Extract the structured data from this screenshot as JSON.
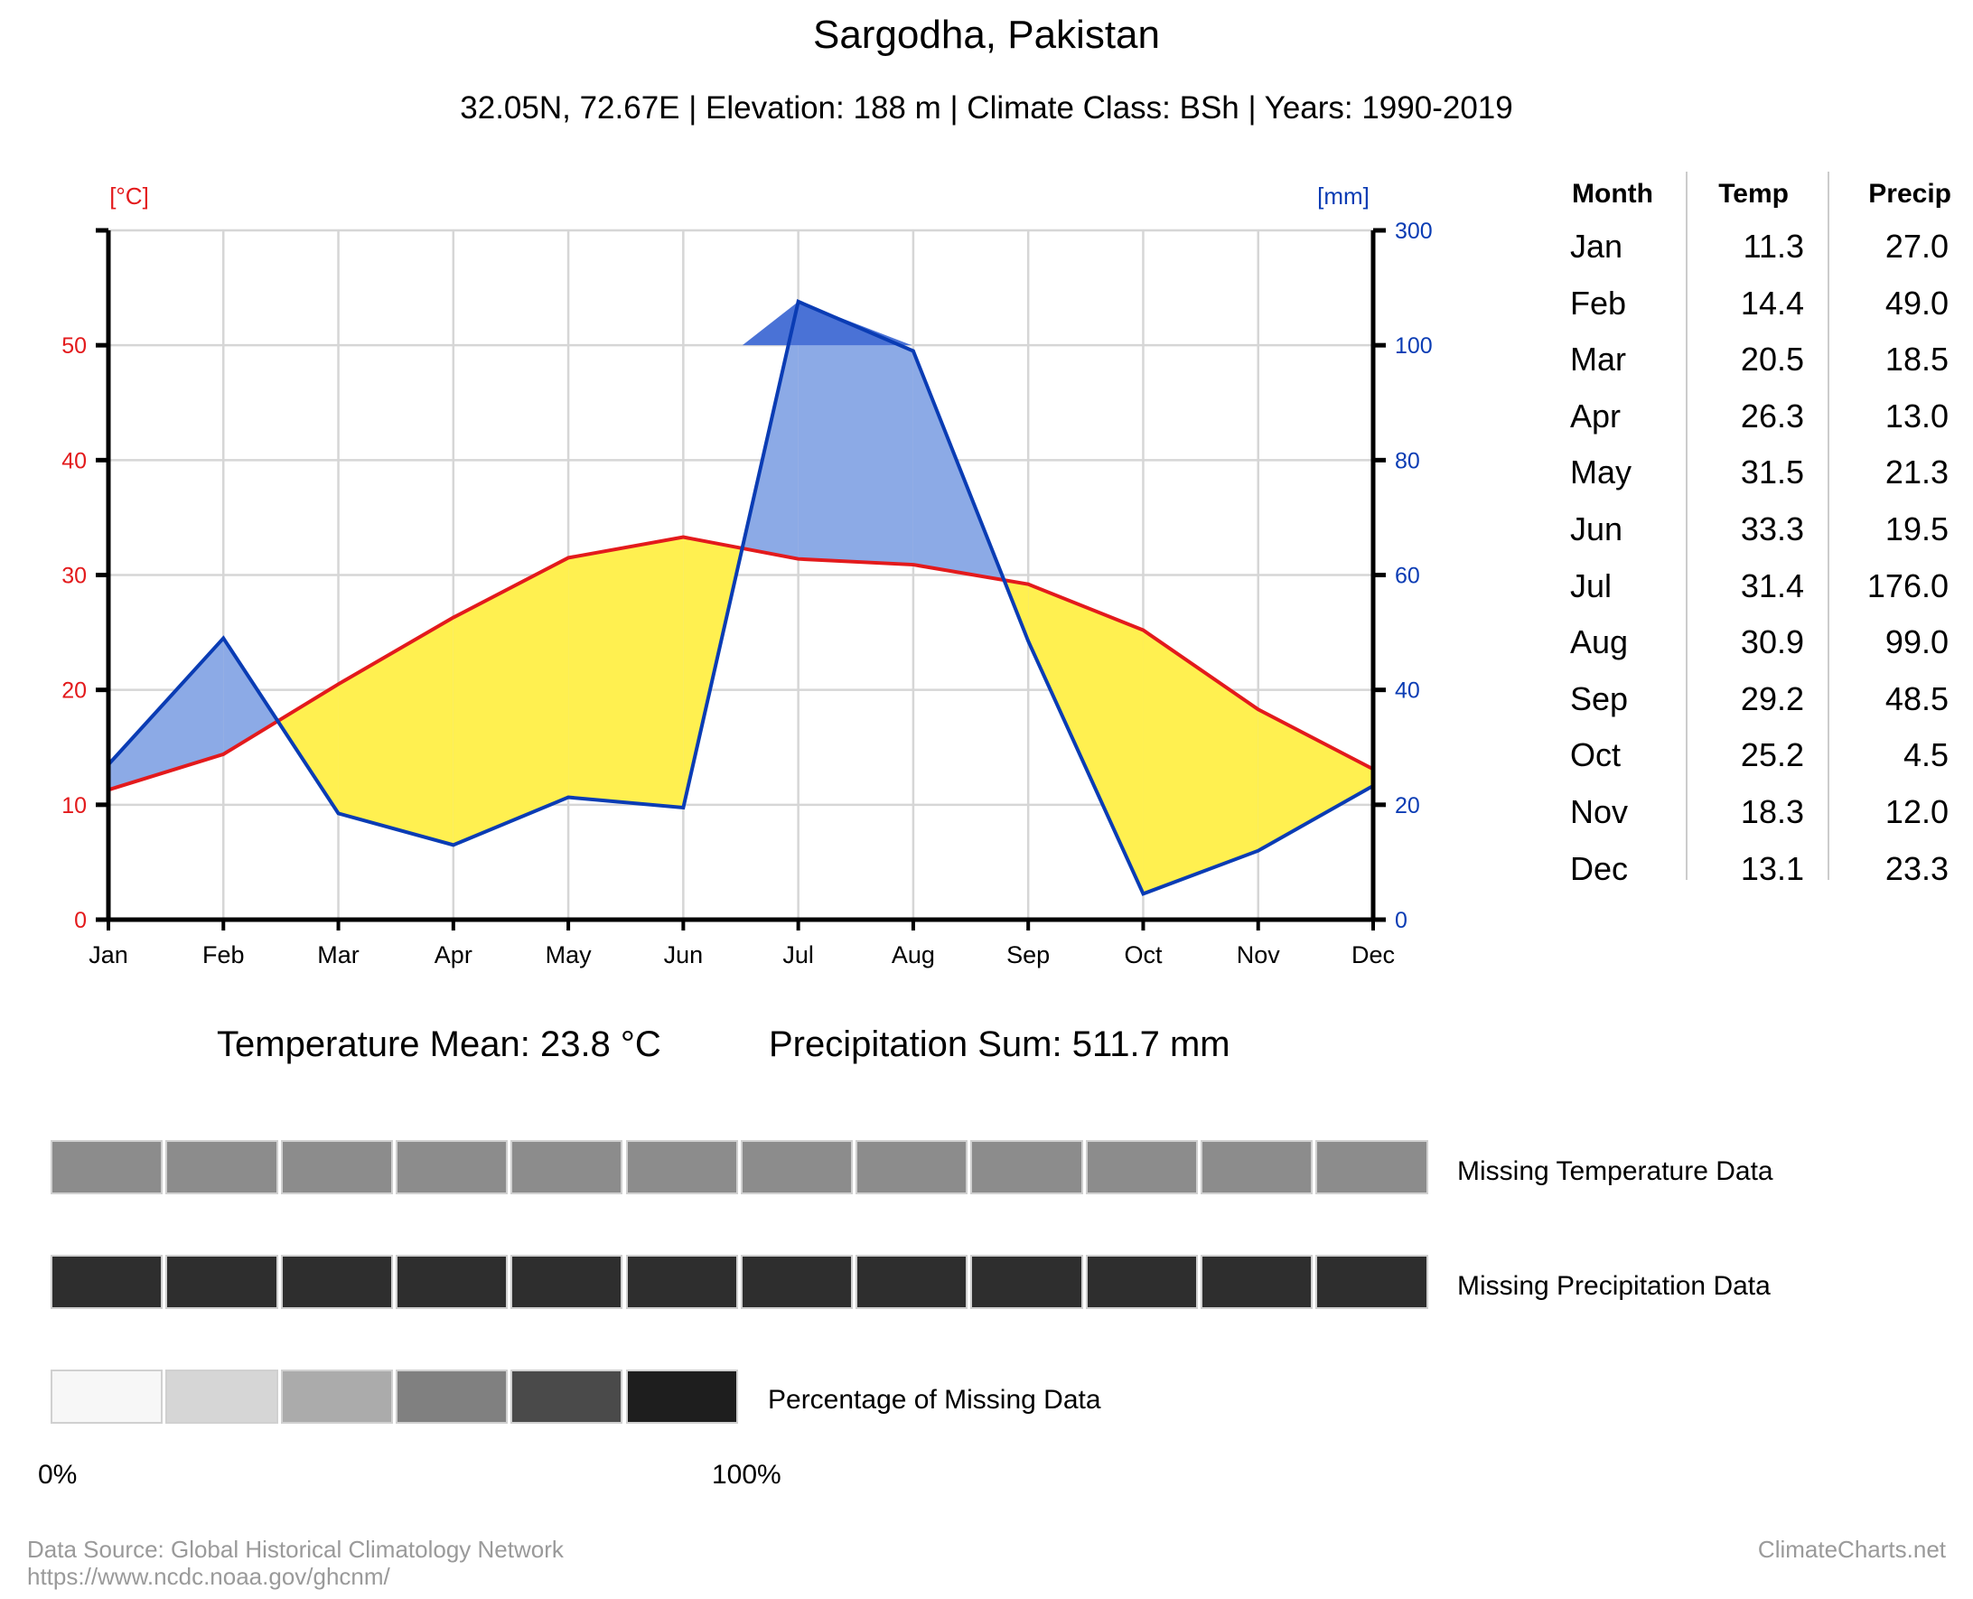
{
  "header": {
    "title": "Sargodha, Pakistan",
    "subtitle": "32.05N, 72.67E | Elevation: 188 m | Climate Class: BSh | Years: 1990-2019"
  },
  "colors": {
    "temp_line": "#e31a1c",
    "precip_line": "#0a3cb4",
    "arid_fill": "#fff050",
    "humid_fill": "#8caae6",
    "perhumid_fill": "#4a72d6",
    "grid": "#d6d6d6",
    "missing_temp": "#8c8c8c",
    "missing_precip": "#2e2e2e"
  },
  "chart_data": {
    "type": "line",
    "title": "Sargodha, Pakistan",
    "categories": [
      "Jan",
      "Feb",
      "Mar",
      "Apr",
      "May",
      "Jun",
      "Jul",
      "Aug",
      "Sep",
      "Oct",
      "Nov",
      "Dec"
    ],
    "series": [
      {
        "name": "Temp",
        "axis": "left",
        "values": [
          11.3,
          14.4,
          20.5,
          26.3,
          31.5,
          33.3,
          31.4,
          30.9,
          29.2,
          25.2,
          18.3,
          13.1
        ]
      },
      {
        "name": "Precip",
        "axis": "right",
        "values": [
          27.0,
          49.0,
          18.5,
          13.0,
          21.3,
          19.5,
          176.0,
          99.0,
          48.5,
          4.5,
          12.0,
          23.3
        ]
      }
    ],
    "left_axis": {
      "unit_label": "[°C]",
      "ylim": [
        0,
        60
      ],
      "ticks": [
        0,
        10,
        20,
        30,
        40,
        50
      ]
    },
    "right_axis": {
      "unit_label": "[mm]",
      "ylim": [
        0,
        300
      ],
      "ticks": [
        0,
        20,
        40,
        60,
        80,
        100,
        300
      ]
    },
    "grid": true
  },
  "table": {
    "headers": [
      "Month",
      "Temp",
      "Precip"
    ],
    "rows": [
      [
        "Jan",
        "11.3",
        "27.0"
      ],
      [
        "Feb",
        "14.4",
        "49.0"
      ],
      [
        "Mar",
        "20.5",
        "18.5"
      ],
      [
        "Apr",
        "26.3",
        "13.0"
      ],
      [
        "May",
        "31.5",
        "21.3"
      ],
      [
        "Jun",
        "33.3",
        "19.5"
      ],
      [
        "Jul",
        "31.4",
        "176.0"
      ],
      [
        "Aug",
        "30.9",
        "99.0"
      ],
      [
        "Sep",
        "29.2",
        "48.5"
      ],
      [
        "Oct",
        "25.2",
        "4.5"
      ],
      [
        "Nov",
        "18.3",
        "12.0"
      ],
      [
        "Dec",
        "13.1",
        "23.3"
      ]
    ]
  },
  "stats": {
    "temp_mean": "Temperature Mean: 23.8 °C",
    "precip_sum": "Precipitation Sum: 511.7 mm"
  },
  "missing": {
    "temp_label": "Missing Temperature Data",
    "precip_label": "Missing Precipitation Data",
    "scale_label": "Percentage of Missing Data",
    "scale_min": "0%",
    "scale_max": "100%",
    "scale_colors": [
      "#f7f7f7",
      "#d6d6d6",
      "#ababab",
      "#808080",
      "#4a4a4a",
      "#1e1e1e"
    ]
  },
  "footer": {
    "source": "Data Source: Global Historical Climatology Network",
    "url": "https://www.ncdc.noaa.gov/ghcnm/",
    "brand": "ClimateCharts.net"
  }
}
